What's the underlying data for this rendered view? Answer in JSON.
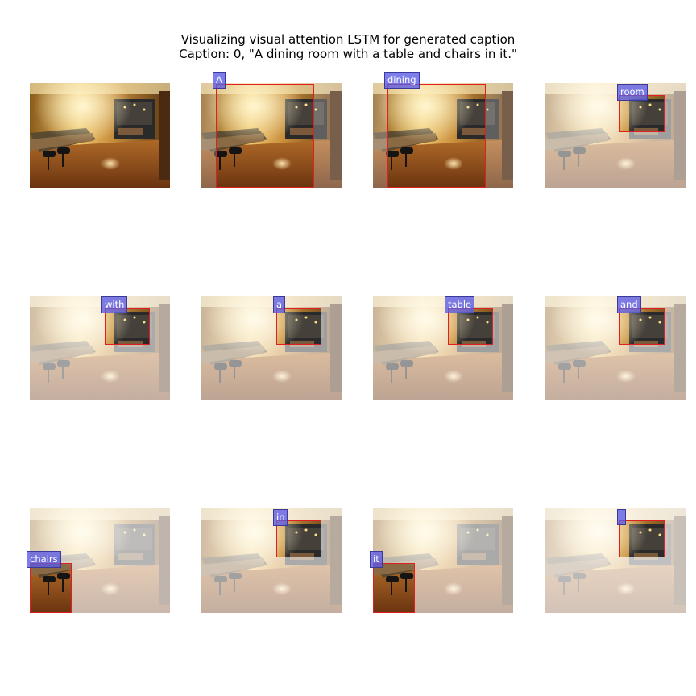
{
  "figure": {
    "title_line1": "Visualizing visual attention LSTM for generated caption",
    "title_line2": "Caption: 0, \"A dining room with a table and chairs in it.\""
  },
  "panels": [
    {
      "word": "",
      "original": true
    },
    {
      "word": "A"
    },
    {
      "word": "dining"
    },
    {
      "word": "room"
    },
    {
      "word": "with"
    },
    {
      "word": "a"
    },
    {
      "word": "table"
    },
    {
      "word": "and"
    },
    {
      "word": "chairs"
    },
    {
      "word": "in"
    },
    {
      "word": "it"
    },
    {
      "word": ""
    }
  ],
  "colors": {
    "attention_box": "#e02020",
    "word_label_bg": "#6a6ae6",
    "word_label_text": "#ffffff"
  }
}
